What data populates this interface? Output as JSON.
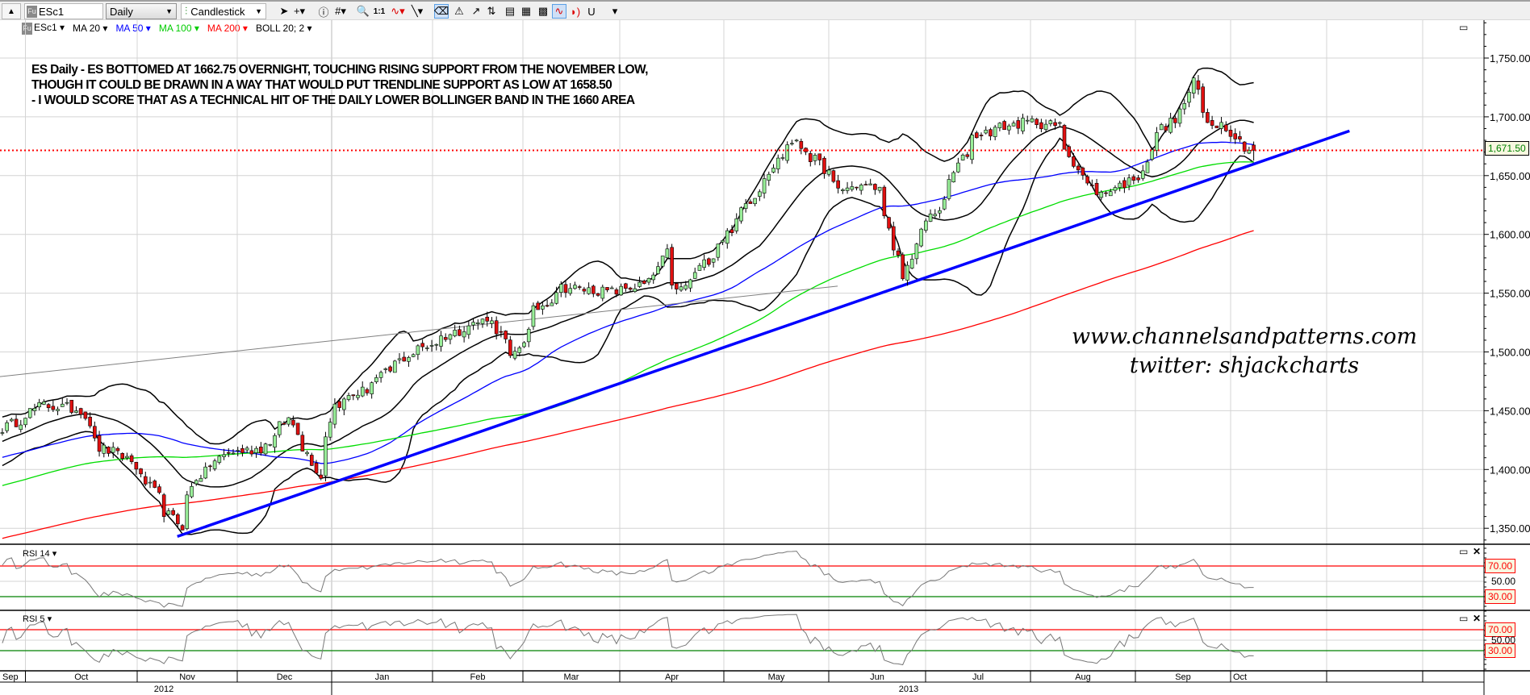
{
  "toolbar": {
    "symbol": "ESc1",
    "symbol_badge": "Fu",
    "timeframe": "Daily",
    "chart_type": "Candlestick",
    "icons": [
      "pointer-icon",
      "crosshair-icon",
      "info-icon",
      "grid-icon",
      "zoom-icon",
      "one-to-one-icon",
      "indicator-icon",
      "line-draw-icon",
      "eraser-icon",
      "alert-icon",
      "trend-icon",
      "compare-icon",
      "template-icon",
      "layout-icon",
      "image-icon",
      "indicator-highlight-icon",
      "signal-icon",
      "magnet-icon",
      "overflow-icon"
    ],
    "one_to_one_label": "1:1"
  },
  "legend": {
    "symbol": "ESc1",
    "ma20": "MA 20",
    "ma50": "MA 50",
    "ma100": "MA 100",
    "ma200": "MA 200",
    "boll": "BOLL 20; 2",
    "colors": {
      "ma20": "#000000",
      "ma50": "#0000ff",
      "ma100": "#00dd00",
      "ma200": "#ff0000",
      "boll": "#000000"
    }
  },
  "annotation": [
    "ES Daily - ES BOTTOMED AT 1662.75 OVERNIGHT, TOUCHING RISING SUPPORT FROM THE NOVEMBER LOW,",
    "THOUGH IT COULD BE DRAWN IN A WAY THAT WOULD PUT TRENDLINE SUPPORT AS LOW AT 1658.50",
    "- I WOULD SCORE THAT AS A TECHNICAL HIT OF THE DAILY LOWER BOLLINGER BAND IN THE 1660 AREA"
  ],
  "watermark": [
    "www.channelsandpatterns.com",
    "twitter: shjackcharts"
  ],
  "panels": {
    "rsi14_label": "RSI 14",
    "rsi5_label": "RSI 5"
  },
  "chart_data": {
    "type": "candlestick",
    "symbol": "ESc1",
    "interval": "Daily",
    "y_ticks": [
      "1,350.00",
      "1,400.00",
      "1,450.00",
      "1,500.00",
      "1,550.00",
      "1,600.00",
      "1,650.00",
      "1,700.00",
      "1,750.00"
    ],
    "y_tick_values": [
      1350,
      1400,
      1450,
      1500,
      1550,
      1600,
      1650,
      1700,
      1750
    ],
    "ylim": [
      1336,
      1784
    ],
    "last_price": 1671.5,
    "last_price_label": "1,671.50",
    "last_low": 1662.75,
    "close_keypoints": [
      [
        "2012-09-24",
        1435
      ],
      [
        "2012-10-05",
        1455
      ],
      [
        "2012-10-17",
        1451
      ],
      [
        "2012-10-23",
        1418
      ],
      [
        "2012-10-31",
        1410
      ],
      [
        "2012-11-06",
        1389
      ],
      [
        "2012-11-12",
        1364
      ],
      [
        "2012-11-16",
        1352
      ],
      [
        "2012-11-21",
        1393
      ],
      [
        "2012-11-30",
        1414
      ],
      [
        "2012-12-11",
        1418
      ],
      [
        "2012-12-19",
        1443
      ],
      [
        "2012-12-25",
        1414
      ],
      [
        "2012-12-28",
        1393
      ],
      [
        "2013-01-02",
        1455
      ],
      [
        "2013-01-11",
        1468
      ],
      [
        "2013-01-24",
        1497
      ],
      [
        "2013-02-08",
        1518
      ],
      [
        "2013-02-18",
        1530
      ],
      [
        "2013-02-25",
        1493
      ],
      [
        "2013-03-04",
        1535
      ],
      [
        "2013-03-12",
        1555
      ],
      [
        "2013-03-27",
        1551
      ],
      [
        "2013-04-08",
        1559
      ],
      [
        "2013-04-12",
        1584
      ],
      [
        "2013-04-16",
        1551
      ],
      [
        "2013-04-22",
        1568
      ],
      [
        "2013-04-30",
        1597
      ],
      [
        "2013-05-09",
        1634
      ],
      [
        "2013-05-17",
        1667
      ],
      [
        "2013-05-21",
        1679
      ],
      [
        "2013-05-28",
        1663
      ],
      [
        "2013-06-04",
        1638
      ],
      [
        "2013-06-10",
        1642
      ],
      [
        "2013-06-17",
        1638
      ],
      [
        "2013-06-20",
        1584
      ],
      [
        "2013-06-24",
        1563
      ],
      [
        "2013-06-28",
        1601
      ],
      [
        "2013-07-05",
        1626
      ],
      [
        "2013-07-10",
        1659
      ],
      [
        "2013-07-15",
        1684
      ],
      [
        "2013-07-24",
        1692
      ],
      [
        "2013-08-02",
        1696
      ],
      [
        "2013-08-09",
        1692
      ],
      [
        "2013-08-16",
        1650
      ],
      [
        "2013-08-22",
        1634
      ],
      [
        "2013-08-28",
        1642
      ],
      [
        "2013-09-03",
        1650
      ],
      [
        "2013-09-09",
        1688
      ],
      [
        "2013-09-16",
        1704
      ],
      [
        "2013-09-19",
        1729
      ],
      [
        "2013-09-24",
        1696
      ],
      [
        "2013-09-30",
        1692
      ],
      [
        "2013-10-04",
        1675
      ],
      [
        "2013-10-08",
        1671.5
      ]
    ],
    "indicators": {
      "ma": [
        {
          "name": "MA 20",
          "period": 20,
          "color": "#000000"
        },
        {
          "name": "MA 50",
          "period": 50,
          "color": "#0000ff"
        },
        {
          "name": "MA 100",
          "period": 100,
          "color": "#00dd00"
        },
        {
          "name": "MA 200",
          "period": 200,
          "color": "#ff0000"
        }
      ],
      "bollinger": {
        "period": 20,
        "stddev": 2,
        "color": "#000000"
      },
      "rsi": [
        {
          "name": "RSI 14",
          "period": 14
        },
        {
          "name": "RSI 5",
          "period": 5
        }
      ]
    },
    "rsi_levels": {
      "upper": 70,
      "mid": 50,
      "lower": 30,
      "upper_label": "70.00",
      "mid_label": "50.00",
      "lower_label": "30.00"
    },
    "trendlines": [
      {
        "name": "rising-support",
        "from": [
          "2012-11-16",
          1343
        ],
        "to": [
          "2013-11-06",
          1688
        ],
        "color": "#0000ff"
      },
      {
        "name": "thin-resistance",
        "from": [
          "2012-09-20",
          1478
        ],
        "to": [
          "2013-06-04",
          1556
        ],
        "color": "#808080"
      }
    ],
    "months": [
      "Sep",
      "Oct",
      "Nov",
      "Dec",
      "Jan",
      "Feb",
      "Mar",
      "Apr",
      "May",
      "Jun",
      "Jul",
      "Aug",
      "Sep",
      "Oct",
      "",
      ""
    ],
    "years": [
      "2012",
      "2013"
    ]
  }
}
